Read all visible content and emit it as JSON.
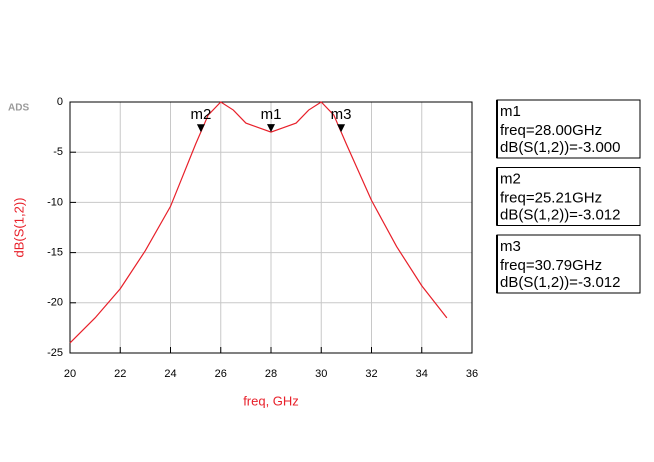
{
  "chart_data": {
    "type": "line",
    "logo": "ADS",
    "x_label": "freq, GHz",
    "y_label": "dB(S(1,2))",
    "xlim": [
      20,
      36
    ],
    "xticks": [
      20,
      22,
      24,
      26,
      28,
      30,
      32,
      34,
      36
    ],
    "ylim": [
      -25,
      0
    ],
    "yticks": [
      0,
      -5,
      -10,
      -15,
      -20,
      -25
    ],
    "grid": true,
    "x": [
      20,
      21,
      22,
      23,
      24,
      25,
      25.5,
      26,
      26.5,
      27,
      28,
      29,
      29.5,
      30,
      30.5,
      31,
      32,
      33,
      34,
      35
    ],
    "series": [
      {
        "name": "dB(S(1,2))",
        "color": "#e8202a",
        "values": [
          -24,
          -21.5,
          -18.6,
          -14.8,
          -10.4,
          -4.2,
          -1.3,
          0,
          -0.8,
          -2.1,
          -3,
          -2.1,
          -0.8,
          0,
          -1.3,
          -4.2,
          -9.8,
          -14.4,
          -18.3,
          -21.5
        ]
      }
    ],
    "markers": [
      {
        "name": "m1",
        "x": 28.0,
        "y": -3.0,
        "readout": [
          "freq=28.00GHz",
          "dB(S(1,2))=-3.000"
        ]
      },
      {
        "name": "m2",
        "x": 25.21,
        "y": -3.012,
        "readout": [
          "freq=25.21GHz",
          "dB(S(1,2))=-3.012"
        ]
      },
      {
        "name": "m3",
        "x": 30.79,
        "y": -3.012,
        "readout": [
          "freq=30.79GHz",
          "dB(S(1,2))=-3.012"
        ]
      }
    ]
  }
}
